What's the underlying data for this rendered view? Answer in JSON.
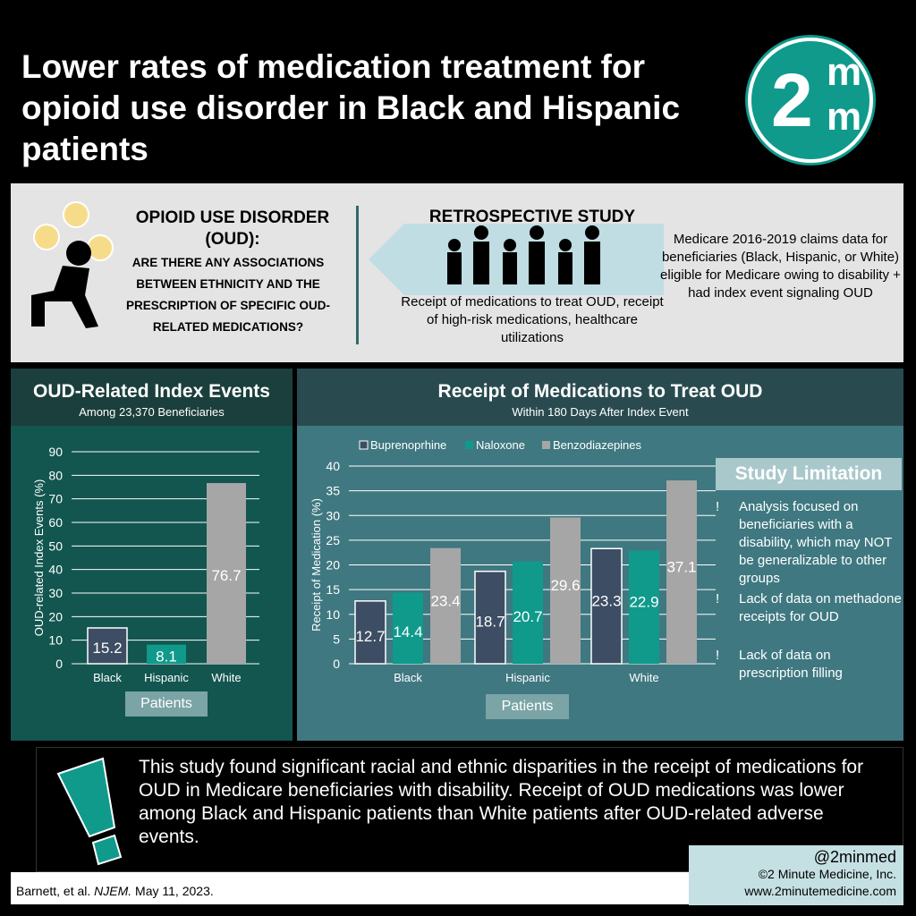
{
  "header": {
    "title": "Lower rates of medication treatment for opioid use disorder in Black and Hispanic patients",
    "logo_text": "2mm"
  },
  "intro": {
    "oud_title": "OPIOID USE DISORDER (OUD):",
    "question": "ARE THERE ANY ASSOCIATIONS BETWEEN ETHNICITY AND THE PRESCRIPTION OF SPECIFIC OUD-RELATED MEDICATIONS?",
    "study_type": "RETROSPECTIVE STUDY",
    "outcomes": "Receipt of medications to treat OUD, receipt of high-risk medications, healthcare utilizations",
    "population": "Medicare 2016-2019 claims data for beneficiaries (Black, Hispanic, or White) eligible for Medicare owing to disability + had index event signaling OUD"
  },
  "left_panel": {
    "title": "OUD-Related Index Events",
    "subtitle": "Among 23,370 Beneficiaries"
  },
  "right_panel": {
    "title": "Receipt of Medications to Treat OUD",
    "subtitle": "Within 180 Days After Index Event"
  },
  "limitations": {
    "title": "Study Limitation",
    "bullet": "!",
    "items": [
      "Analysis focused on beneficiaries with a disability, which may NOT be generalizable to other groups",
      "Lack of data on methadone receipts for OUD",
      "Lack of data on prescription filling"
    ]
  },
  "conclusion": "This study found significant racial and ethnic disparities in the receipt of medications for OUD in Medicare beneficiaries with disability. Receipt of OUD medications was lower among Black and Hispanic patients than White patients after OUD-related adverse events.",
  "footer": {
    "citation_pre": "Barnett, et al. ",
    "citation_journal": "NJEM.",
    "citation_post": " May 11, 2023.",
    "handle": "@2minmed",
    "copyright": "©2 Minute Medicine, Inc.",
    "url": "www.2minutemedicine.com"
  },
  "colors": {
    "buprenorphine": "#3d4d63",
    "naloxone": "#0f9a8c",
    "benzodiazepines": "#a6a6a6"
  },
  "chart_data": [
    {
      "type": "bar",
      "title": "OUD-Related Index Events",
      "subtitle": "Among 23,370 Beneficiaries",
      "categories": [
        "Black",
        "Hispanic",
        "White"
      ],
      "values": [
        15.2,
        8.1,
        76.7
      ],
      "xlabel": "Patients",
      "ylabel": "OUD-related Index Events (%)",
      "ylim": [
        0,
        90
      ],
      "yticks": [
        0,
        10,
        20,
        30,
        40,
        50,
        60,
        70,
        80,
        90
      ],
      "grid": true
    },
    {
      "type": "bar",
      "title": "Receipt of Medications to Treat OUD",
      "subtitle": "Within 180 Days After Index Event",
      "categories": [
        "Black",
        "Hispanic",
        "White"
      ],
      "series": [
        {
          "name": "Buprenoprhine",
          "values": [
            12.7,
            18.7,
            23.3
          ]
        },
        {
          "name": "Naloxone",
          "values": [
            14.4,
            20.7,
            22.9
          ]
        },
        {
          "name": "Benzodiazepines",
          "values": [
            23.4,
            29.6,
            37.1
          ]
        }
      ],
      "xlabel": "Patients",
      "ylabel": "Receipt of Medication (%)",
      "ylim": [
        0,
        40
      ],
      "yticks": [
        0,
        5,
        10,
        15,
        20,
        25,
        30,
        35,
        40
      ],
      "grid": true,
      "legend": "top"
    }
  ]
}
